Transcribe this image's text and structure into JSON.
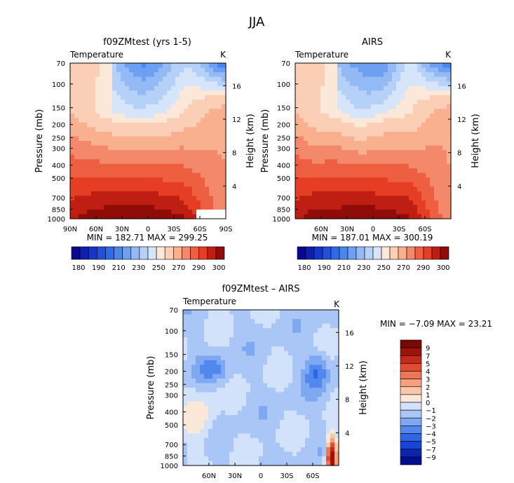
{
  "figure_title": "JJA",
  "colors": {
    "full_levels": [
      "#08088c",
      "#0e1fb0",
      "#1736c9",
      "#234fdc",
      "#2f6ae8",
      "#4a86ef",
      "#6da0f2",
      "#93baf5",
      "#b5d1f8",
      "#d6e5fa",
      "#fbe8d9",
      "#fbcfb5",
      "#f8b08f",
      "#f4886a",
      "#ee5f41",
      "#e53e25",
      "#bf1f12",
      "#8f0c08"
    ],
    "diff_levels": [
      "#050e8a",
      "#0c25b1",
      "#1a44d3",
      "#2f66e6",
      "#5288ee",
      "#7fa8f3",
      "#a9c6f7",
      "#d2e2fb",
      "#fbe8d9",
      "#f9c8a8",
      "#f5a07e",
      "#ef7655",
      "#e24b31",
      "#c42a18",
      "#9c140c",
      "#760805"
    ]
  },
  "chart_data": [
    {
      "type": "heatmap",
      "panel": "model",
      "title": "f09ZMtest (yrs 1-5)",
      "left_label": "Temperature",
      "right_label": "K",
      "ylabel": "Pressure (mb)",
      "y2label": "Height (km)",
      "x_tick_labels": [
        "90N",
        "60N",
        "30N",
        "0",
        "30S",
        "60S",
        "90S"
      ],
      "x_ticks": [
        90,
        60,
        30,
        0,
        -30,
        -60,
        -90
      ],
      "xlim": [
        90,
        -90
      ],
      "y_tick_labels": [
        "70",
        "100",
        "150",
        "200",
        "250",
        "300",
        "400",
        "500",
        "700",
        "850",
        "1000"
      ],
      "y_ticks": [
        70,
        100,
        150,
        200,
        250,
        300,
        400,
        500,
        700,
        850,
        1000
      ],
      "ylim": [
        70,
        1000
      ],
      "y2_tick_labels": [
        "4",
        "8",
        "12",
        "16"
      ],
      "y2_ticks": [
        4,
        8,
        12,
        16
      ],
      "stats": "MIN = 182.71   MAX = 299.25",
      "colorbar_labels": [
        "180",
        "190",
        "210",
        "230",
        "250",
        "270",
        "290",
        "300"
      ],
      "colorbar_levels": [
        180,
        185,
        190,
        195,
        200,
        205,
        210,
        215,
        220,
        225,
        230,
        240,
        250,
        260,
        270,
        280,
        290,
        295,
        300
      ]
    },
    {
      "type": "heatmap",
      "panel": "obs",
      "title": "AIRS",
      "left_label": "Temperature",
      "right_label": "K",
      "ylabel": "Pressure (mb)",
      "y2label": "Height (km)",
      "x_tick_labels": [
        "60N",
        "30N",
        "0",
        "30S",
        "60S"
      ],
      "x_ticks": [
        60,
        30,
        0,
        -30,
        -60
      ],
      "xlim": [
        90,
        -90
      ],
      "y_tick_labels": [
        "70",
        "100",
        "150",
        "200",
        "250",
        "300",
        "400",
        "500",
        "700",
        "850",
        "1000"
      ],
      "y_ticks": [
        70,
        100,
        150,
        200,
        250,
        300,
        400,
        500,
        700,
        850,
        1000
      ],
      "ylim": [
        70,
        1000
      ],
      "y2_tick_labels": [
        "4",
        "8",
        "12",
        "16"
      ],
      "y2_ticks": [
        4,
        8,
        12,
        16
      ],
      "stats": "MIN = 187.01   MAX = 300.19",
      "colorbar_labels": [
        "180",
        "190",
        "210",
        "230",
        "250",
        "270",
        "290",
        "300"
      ],
      "colorbar_levels": [
        180,
        185,
        190,
        195,
        200,
        205,
        210,
        215,
        220,
        225,
        230,
        240,
        250,
        260,
        270,
        280,
        290,
        295,
        300
      ]
    },
    {
      "type": "heatmap",
      "panel": "diff",
      "title": "f09ZMtest – AIRS",
      "left_label": "Temperature",
      "right_label": "K",
      "ylabel": "Pressure (mb)",
      "y2label": "Height (km)",
      "x_tick_labels": [
        "60N",
        "30N",
        "0",
        "30S",
        "60S"
      ],
      "x_ticks": [
        60,
        30,
        0,
        -30,
        -60
      ],
      "xlim": [
        90,
        -90
      ],
      "y_tick_labels": [
        "70",
        "100",
        "150",
        "200",
        "250",
        "300",
        "400",
        "500",
        "700",
        "850",
        "1000"
      ],
      "y_ticks": [
        70,
        100,
        150,
        200,
        250,
        300,
        400,
        500,
        700,
        850,
        1000
      ],
      "ylim": [
        70,
        1000
      ],
      "y2_tick_labels": [
        "4",
        "8",
        "12",
        "16"
      ],
      "y2_ticks": [
        4,
        8,
        12,
        16
      ],
      "stats": "MIN =   −7.09   MAX =   23.21",
      "colorbar_labels": [
        "9",
        "7",
        "5",
        "4",
        "3",
        "2",
        "1",
        "0",
        "−1",
        "−2",
        "−3",
        "−4",
        "−5",
        "−7",
        "−9"
      ],
      "colorbar_levels": [
        -9,
        -7,
        -5,
        -4,
        -3,
        -2,
        -1,
        0,
        1,
        2,
        3,
        4,
        5,
        7,
        9
      ]
    }
  ]
}
